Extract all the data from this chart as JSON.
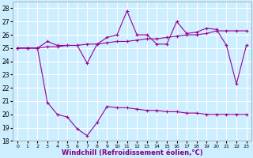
{
  "x": [
    0,
    1,
    2,
    3,
    4,
    5,
    6,
    7,
    8,
    9,
    10,
    11,
    12,
    13,
    14,
    15,
    16,
    17,
    18,
    19,
    20,
    21,
    22,
    23
  ],
  "line_flat": [
    25.0,
    25.0,
    25.0,
    25.1,
    25.1,
    25.2,
    25.2,
    25.3,
    25.3,
    25.4,
    25.5,
    25.5,
    25.6,
    25.7,
    25.7,
    25.8,
    25.9,
    26.0,
    26.0,
    26.1,
    26.3,
    26.3,
    26.3,
    26.3
  ],
  "line_top": [
    25.0,
    25.0,
    25.0,
    25.5,
    25.2,
    25.2,
    25.2,
    23.85,
    25.3,
    25.8,
    26.0,
    27.8,
    26.0,
    26.0,
    25.3,
    25.3,
    27.0,
    26.1,
    26.2,
    26.5,
    26.4,
    25.2,
    22.3,
    25.2
  ],
  "line_bot": [
    25.0,
    25.0,
    25.0,
    20.9,
    20.0,
    19.8,
    18.9,
    18.4,
    19.4,
    20.6,
    20.5,
    20.5,
    20.4,
    20.3,
    20.3,
    20.2,
    20.2,
    20.1,
    20.1,
    20.0,
    20.0,
    20.0,
    20.0,
    20.0
  ],
  "color": "#990099",
  "bg_color": "#cceeff",
  "xlabel": "Windchill (Refroidissement éolien,°C)",
  "ylim": [
    18,
    28.5
  ],
  "yticks": [
    18,
    19,
    20,
    21,
    22,
    23,
    24,
    25,
    26,
    27,
    28
  ],
  "xticks": [
    0,
    1,
    2,
    3,
    4,
    5,
    6,
    7,
    8,
    9,
    10,
    11,
    12,
    13,
    14,
    15,
    16,
    17,
    18,
    19,
    20,
    21,
    22,
    23
  ],
  "xlim": [
    -0.5,
    23.5
  ],
  "marker": "+"
}
